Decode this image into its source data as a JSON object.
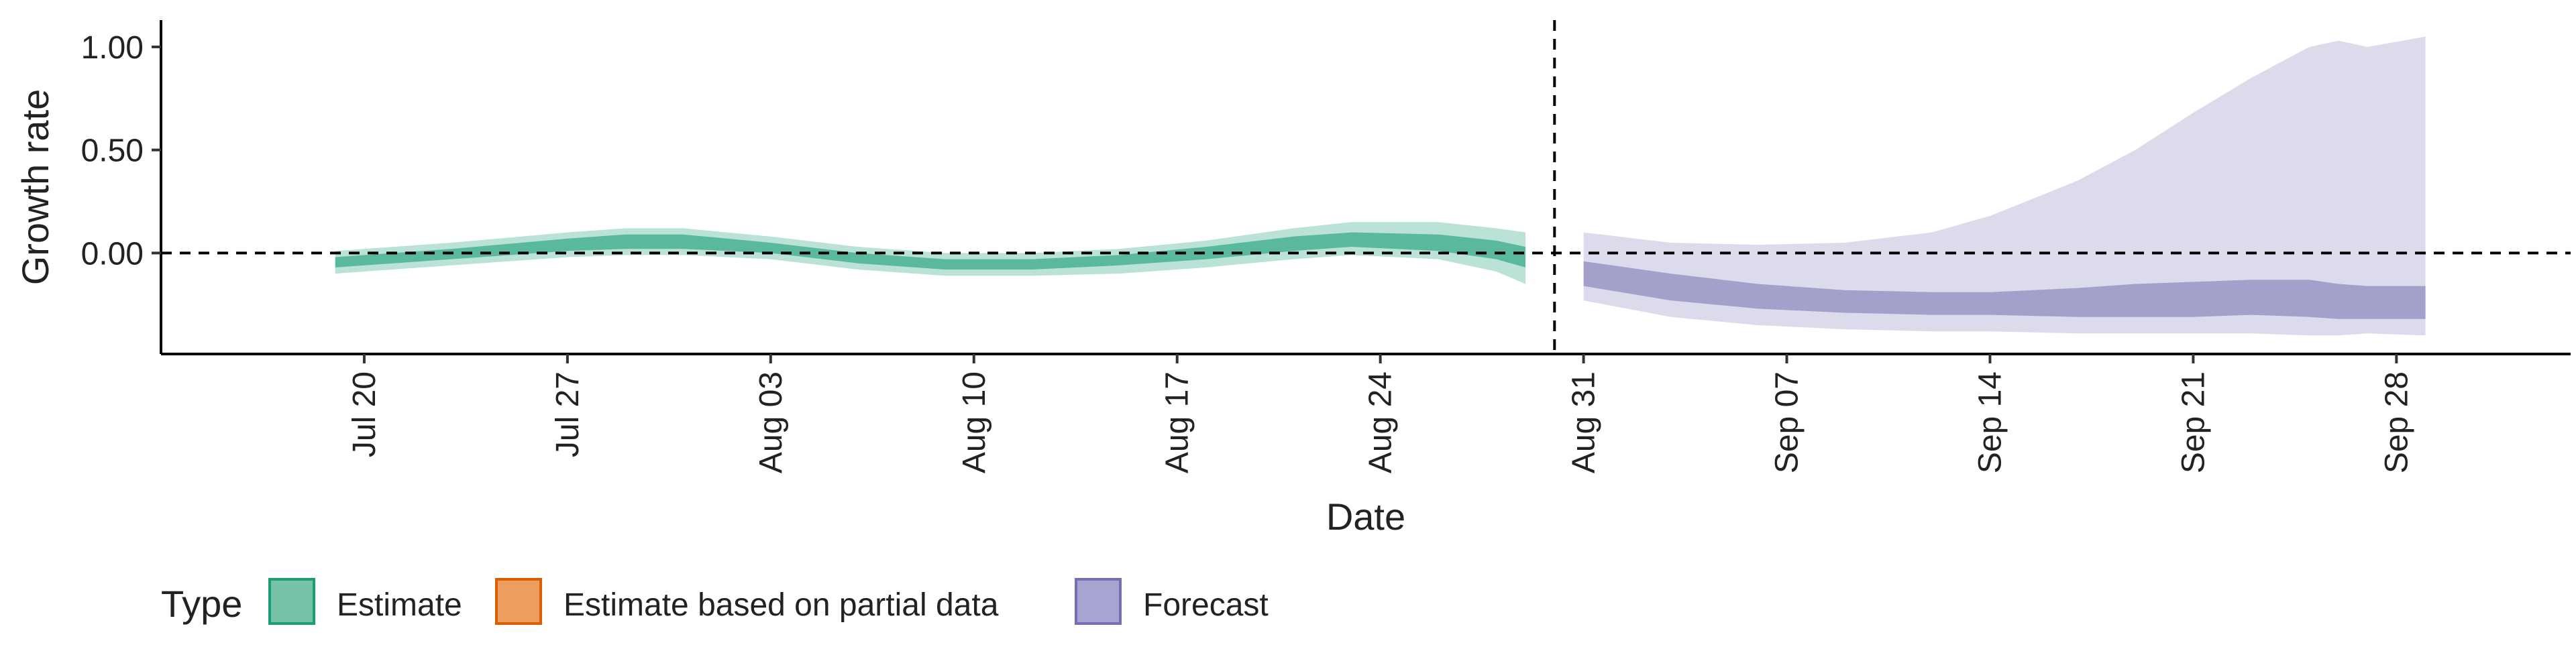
{
  "chart_data": {
    "type": "area",
    "xlabel": "Date",
    "ylabel": "Growth rate",
    "ylim": [
      -0.49,
      1.13
    ],
    "xlim": [
      "2020-07-13",
      "2020-10-04"
    ],
    "y_ticks": [
      {
        "value": 0.0,
        "label": "0.00"
      },
      {
        "value": 0.5,
        "label": "0.50"
      },
      {
        "value": 1.0,
        "label": "1.00"
      }
    ],
    "x_ticks": [
      {
        "date": "2020-07-20",
        "label": "Jul 20"
      },
      {
        "date": "2020-07-27",
        "label": "Jul 27"
      },
      {
        "date": "2020-08-03",
        "label": "Aug 03"
      },
      {
        "date": "2020-08-10",
        "label": "Aug 10"
      },
      {
        "date": "2020-08-17",
        "label": "Aug 17"
      },
      {
        "date": "2020-08-24",
        "label": "Aug 24"
      },
      {
        "date": "2020-08-31",
        "label": "Aug 31"
      },
      {
        "date": "2020-09-07",
        "label": "Sep 07"
      },
      {
        "date": "2020-09-14",
        "label": "Sep 14"
      },
      {
        "date": "2020-09-21",
        "label": "Sep 21"
      },
      {
        "date": "2020-09-28",
        "label": "Sep 28"
      }
    ],
    "reference_lines": {
      "horizontal_y": 0.0,
      "vertical_date": "2020-08-30",
      "style": "dashed"
    },
    "legend": {
      "title": "Type",
      "placement": "bottom-left",
      "entries": [
        {
          "label": "Estimate",
          "fill": "#76c3a7",
          "stroke": "#1b9e77"
        },
        {
          "label": "Estimate based on partial data",
          "fill": "#ee9d60",
          "stroke": "#d95f02"
        },
        {
          "label": "Forecast",
          "fill": "#a8a4d1",
          "stroke": "#7570b3"
        }
      ]
    },
    "series": [
      {
        "name": "Estimate",
        "color": "#1b9e77",
        "bands": [
          {
            "interval": "outer",
            "opacity": 0.3,
            "dates": [
              "2020-07-19",
              "2020-07-23",
              "2020-07-27",
              "2020-07-29",
              "2020-07-31",
              "2020-08-03",
              "2020-08-06",
              "2020-08-09",
              "2020-08-12",
              "2020-08-15",
              "2020-08-18",
              "2020-08-21",
              "2020-08-23",
              "2020-08-26",
              "2020-08-28",
              "2020-08-29"
            ],
            "lower": [
              -0.1,
              -0.06,
              -0.02,
              -0.01,
              -0.01,
              -0.03,
              -0.08,
              -0.11,
              -0.11,
              -0.1,
              -0.07,
              -0.03,
              -0.01,
              -0.03,
              -0.09,
              -0.15
            ],
            "upper": [
              0.01,
              0.05,
              0.1,
              0.12,
              0.12,
              0.08,
              0.03,
              0.0,
              0.0,
              0.02,
              0.06,
              0.12,
              0.15,
              0.15,
              0.12,
              0.1
            ]
          },
          {
            "interval": "inner",
            "opacity": 0.6,
            "dates": [
              "2020-07-19",
              "2020-07-23",
              "2020-07-27",
              "2020-07-29",
              "2020-07-31",
              "2020-08-03",
              "2020-08-06",
              "2020-08-09",
              "2020-08-12",
              "2020-08-15",
              "2020-08-18",
              "2020-08-21",
              "2020-08-23",
              "2020-08-26",
              "2020-08-28",
              "2020-08-29"
            ],
            "lower": [
              -0.07,
              -0.03,
              0.01,
              0.02,
              0.02,
              0.0,
              -0.05,
              -0.08,
              -0.08,
              -0.06,
              -0.03,
              0.01,
              0.03,
              0.01,
              -0.03,
              -0.07
            ],
            "upper": [
              -0.02,
              0.02,
              0.07,
              0.09,
              0.09,
              0.05,
              0.0,
              -0.03,
              -0.03,
              -0.01,
              0.03,
              0.08,
              0.1,
              0.09,
              0.06,
              0.03
            ]
          }
        ]
      },
      {
        "name": "Forecast",
        "color": "#7570b3",
        "bands": [
          {
            "interval": "outer",
            "opacity": 0.25,
            "dates": [
              "2020-08-31",
              "2020-09-03",
              "2020-09-06",
              "2020-09-09",
              "2020-09-12",
              "2020-09-14",
              "2020-09-17",
              "2020-09-19",
              "2020-09-21",
              "2020-09-23",
              "2020-09-25",
              "2020-09-26",
              "2020-09-27",
              "2020-09-29"
            ],
            "lower": [
              -0.23,
              -0.31,
              -0.35,
              -0.37,
              -0.38,
              -0.38,
              -0.39,
              -0.39,
              -0.39,
              -0.39,
              -0.4,
              -0.4,
              -0.39,
              -0.4
            ],
            "upper": [
              0.1,
              0.05,
              0.04,
              0.05,
              0.1,
              0.18,
              0.35,
              0.5,
              0.68,
              0.85,
              1.0,
              1.03,
              1.0,
              1.05
            ]
          },
          {
            "interval": "inner",
            "opacity": 0.55,
            "dates": [
              "2020-08-31",
              "2020-09-03",
              "2020-09-06",
              "2020-09-09",
              "2020-09-12",
              "2020-09-14",
              "2020-09-17",
              "2020-09-19",
              "2020-09-21",
              "2020-09-23",
              "2020-09-25",
              "2020-09-26",
              "2020-09-27",
              "2020-09-29"
            ],
            "lower": [
              -0.16,
              -0.23,
              -0.27,
              -0.29,
              -0.3,
              -0.3,
              -0.31,
              -0.31,
              -0.31,
              -0.3,
              -0.31,
              -0.32,
              -0.32,
              -0.32
            ],
            "upper": [
              -0.04,
              -0.1,
              -0.15,
              -0.18,
              -0.19,
              -0.19,
              -0.17,
              -0.15,
              -0.14,
              -0.13,
              -0.13,
              -0.15,
              -0.16,
              -0.16
            ]
          }
        ]
      }
    ]
  }
}
